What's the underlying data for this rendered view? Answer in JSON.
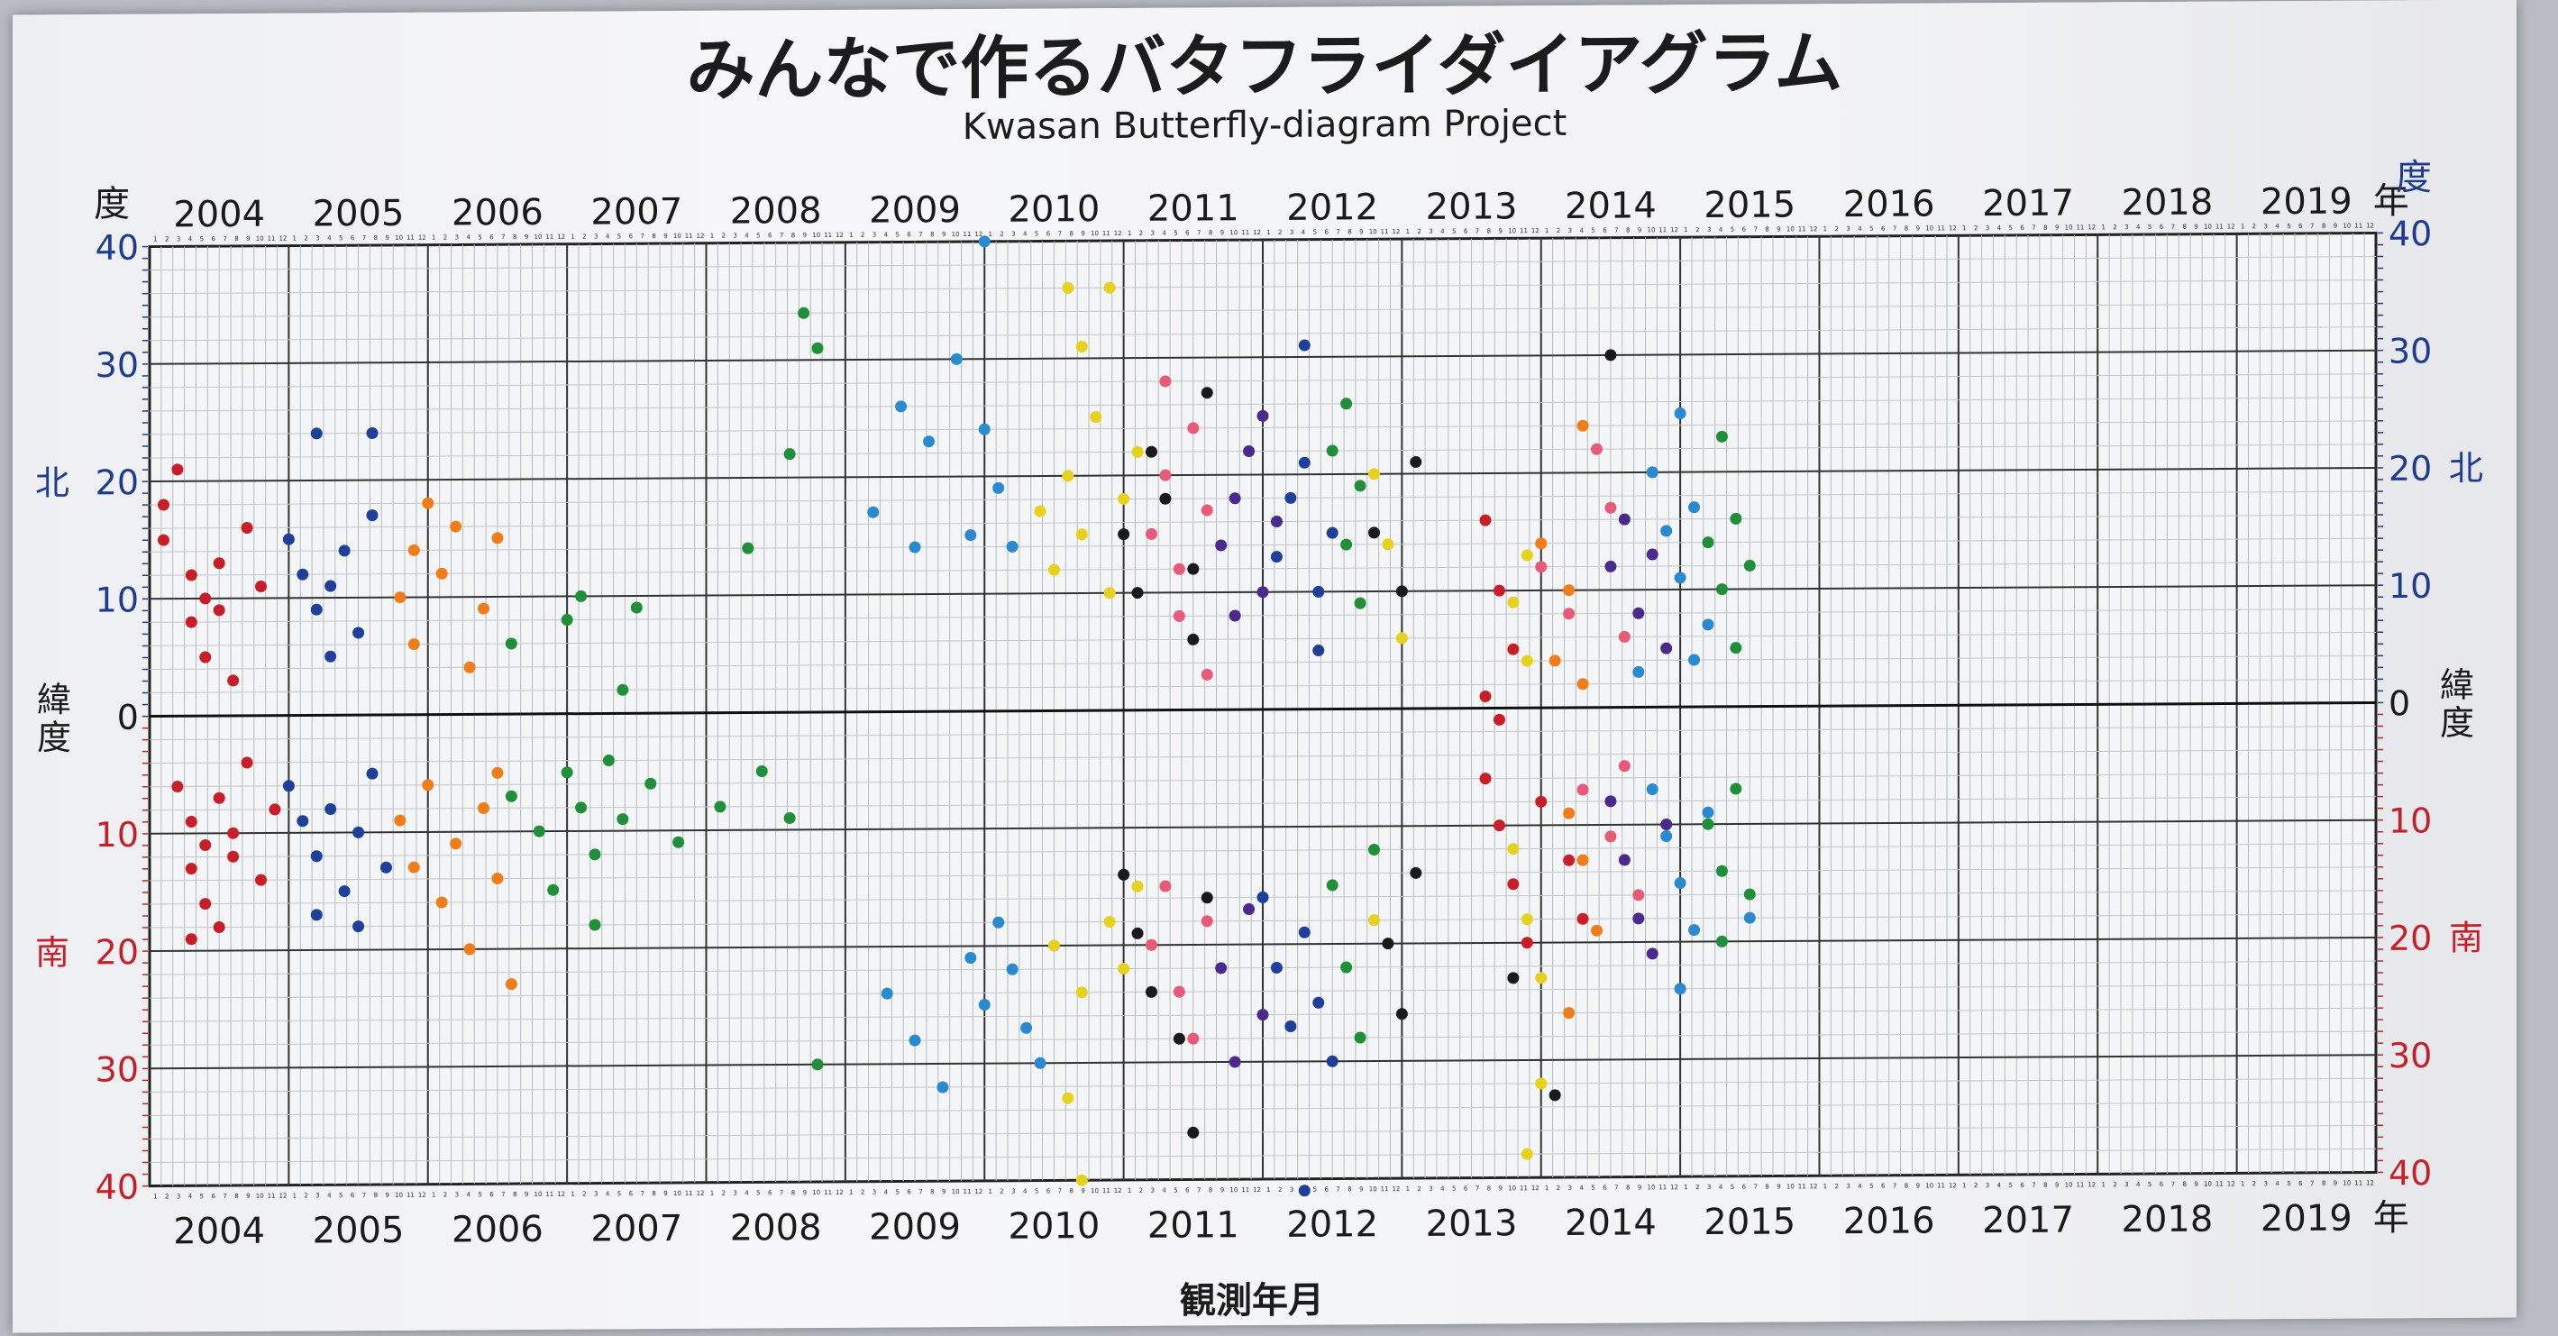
{
  "chart_data": {
    "type": "scatter",
    "title": "みんなで作るバタフライダイアグラム",
    "subtitle": "Kwasan Butterfly-diagram Project",
    "xlabel": "観測年月",
    "year_ticks": [
      "2004",
      "2005",
      "2006",
      "2007",
      "2008",
      "2009",
      "2010",
      "2011",
      "2012",
      "2013",
      "2014",
      "2015",
      "2016",
      "2017",
      "2018",
      "2019"
    ],
    "year_suffix": "年",
    "xlim": [
      2004.0,
      2020.0
    ],
    "ylim": [
      -40,
      40
    ],
    "y_ticks_north": [
      40,
      30,
      20,
      10
    ],
    "y_ticks_south": [
      10,
      20,
      30,
      40
    ],
    "y_zero": "0",
    "y_unit_label": "度",
    "north_label": "北",
    "south_label": "南",
    "latitude_label": "緯度",
    "month_ticks": [
      "1",
      "2",
      "3",
      "4",
      "5",
      "6",
      "7",
      "8",
      "9",
      "10",
      "11",
      "12"
    ],
    "grid": true,
    "colors": {
      "north_axis": "#1f3b8f",
      "south_axis": "#c4202a",
      "red": "#c81e2a",
      "blue": "#1e3f9a",
      "orange": "#f07d1a",
      "green": "#1f8f3a",
      "yellow": "#e6d21e",
      "pink": "#e85a78",
      "purple": "#4a2a8c",
      "black": "#1a1a1a",
      "lightblue": "#2a8ad0"
    },
    "series": [
      {
        "color": "red",
        "points": [
          [
            2004.1,
            18
          ],
          [
            2004.1,
            15
          ],
          [
            2004.3,
            12
          ],
          [
            2004.3,
            8
          ],
          [
            2004.4,
            10
          ],
          [
            2004.4,
            5
          ],
          [
            2004.5,
            13
          ],
          [
            2004.5,
            9
          ],
          [
            2004.7,
            16
          ],
          [
            2004.8,
            11
          ],
          [
            2004.2,
            21
          ],
          [
            2004.6,
            3
          ],
          [
            2004.2,
            -6
          ],
          [
            2004.3,
            -9
          ],
          [
            2004.3,
            -13
          ],
          [
            2004.4,
            -16
          ],
          [
            2004.4,
            -11
          ],
          [
            2004.5,
            -7
          ],
          [
            2004.5,
            -18
          ],
          [
            2004.6,
            -10
          ],
          [
            2004.7,
            -4
          ],
          [
            2004.8,
            -14
          ],
          [
            2004.9,
            -8
          ],
          [
            2004.3,
            -19
          ],
          [
            2004.6,
            -12
          ]
        ]
      },
      {
        "color": "blue",
        "points": [
          [
            2005.0,
            15
          ],
          [
            2005.1,
            12
          ],
          [
            2005.2,
            9
          ],
          [
            2005.3,
            11
          ],
          [
            2005.4,
            14
          ],
          [
            2005.5,
            7
          ],
          [
            2005.6,
            17
          ],
          [
            2005.3,
            5
          ],
          [
            2005.2,
            24
          ],
          [
            2005.6,
            24
          ],
          [
            2005.0,
            -6
          ],
          [
            2005.1,
            -9
          ],
          [
            2005.2,
            -12
          ],
          [
            2005.3,
            -8
          ],
          [
            2005.4,
            -15
          ],
          [
            2005.5,
            -10
          ],
          [
            2005.6,
            -5
          ],
          [
            2005.7,
            -13
          ],
          [
            2005.2,
            -17
          ],
          [
            2005.5,
            -18
          ]
        ]
      },
      {
        "color": "orange",
        "points": [
          [
            2005.8,
            10
          ],
          [
            2005.9,
            14
          ],
          [
            2005.9,
            6
          ],
          [
            2006.0,
            18
          ],
          [
            2006.1,
            12
          ],
          [
            2006.2,
            16
          ],
          [
            2006.3,
            4
          ],
          [
            2006.4,
            9
          ],
          [
            2006.5,
            15
          ],
          [
            2005.8,
            -9
          ],
          [
            2005.9,
            -13
          ],
          [
            2006.0,
            -6
          ],
          [
            2006.1,
            -16
          ],
          [
            2006.2,
            -11
          ],
          [
            2006.3,
            -20
          ],
          [
            2006.4,
            -8
          ],
          [
            2006.5,
            -14
          ],
          [
            2006.6,
            -23
          ],
          [
            2006.5,
            -5
          ]
        ]
      },
      {
        "color": "green",
        "points": [
          [
            2006.6,
            6
          ],
          [
            2007.0,
            8
          ],
          [
            2007.1,
            10
          ],
          [
            2007.5,
            9
          ],
          [
            2008.3,
            14
          ],
          [
            2008.7,
            34
          ],
          [
            2008.8,
            31
          ],
          [
            2008.6,
            22
          ],
          [
            2007.4,
            2
          ],
          [
            2006.6,
            -7
          ],
          [
            2006.8,
            -10
          ],
          [
            2007.0,
            -5
          ],
          [
            2007.1,
            -8
          ],
          [
            2007.2,
            -12
          ],
          [
            2007.3,
            -4
          ],
          [
            2007.4,
            -9
          ],
          [
            2007.6,
            -6
          ],
          [
            2007.8,
            -11
          ],
          [
            2008.1,
            -8
          ],
          [
            2008.4,
            -5
          ],
          [
            2008.6,
            -9
          ],
          [
            2006.9,
            -15
          ],
          [
            2007.2,
            -18
          ],
          [
            2008.8,
            -30
          ]
        ]
      },
      {
        "color": "lightblue",
        "points": [
          [
            2009.2,
            17
          ],
          [
            2009.4,
            26
          ],
          [
            2009.6,
            23
          ],
          [
            2009.8,
            30
          ],
          [
            2010.0,
            24
          ],
          [
            2010.1,
            19
          ],
          [
            2010.2,
            14
          ],
          [
            2009.9,
            15
          ],
          [
            2010.0,
            40
          ],
          [
            2009.5,
            14
          ],
          [
            2009.3,
            -24
          ],
          [
            2009.5,
            -28
          ],
          [
            2009.7,
            -32
          ],
          [
            2009.9,
            -21
          ],
          [
            2010.0,
            -25
          ],
          [
            2010.1,
            -18
          ],
          [
            2010.2,
            -22
          ],
          [
            2010.3,
            -27
          ],
          [
            2010.4,
            -30
          ],
          [
            2010.5,
            -20
          ]
        ]
      },
      {
        "color": "yellow",
        "points": [
          [
            2010.4,
            17
          ],
          [
            2010.5,
            12
          ],
          [
            2010.6,
            20
          ],
          [
            2010.7,
            15
          ],
          [
            2010.8,
            25
          ],
          [
            2010.9,
            10
          ],
          [
            2011.0,
            18
          ],
          [
            2011.1,
            22
          ],
          [
            2010.6,
            36
          ],
          [
            2010.9,
            36
          ],
          [
            2010.7,
            31
          ],
          [
            2010.5,
            -20
          ],
          [
            2010.7,
            -24
          ],
          [
            2010.9,
            -18
          ],
          [
            2011.0,
            -22
          ],
          [
            2011.1,
            -15
          ],
          [
            2010.6,
            -33
          ],
          [
            2010.7,
            -40
          ]
        ]
      },
      {
        "color": "pink",
        "points": [
          [
            2011.2,
            15
          ],
          [
            2011.3,
            20
          ],
          [
            2011.4,
            12
          ],
          [
            2011.5,
            24
          ],
          [
            2011.6,
            17
          ],
          [
            2011.3,
            28
          ],
          [
            2011.4,
            8
          ],
          [
            2011.6,
            3
          ],
          [
            2011.2,
            -20
          ],
          [
            2011.3,
            -15
          ],
          [
            2011.4,
            -24
          ],
          [
            2011.5,
            -28
          ],
          [
            2011.6,
            -18
          ]
        ]
      },
      {
        "color": "purple",
        "points": [
          [
            2011.7,
            14
          ],
          [
            2011.8,
            18
          ],
          [
            2011.9,
            22
          ],
          [
            2012.0,
            10
          ],
          [
            2012.1,
            16
          ],
          [
            2011.8,
            8
          ],
          [
            2012.0,
            25
          ],
          [
            2011.7,
            -22
          ],
          [
            2011.8,
            -30
          ],
          [
            2011.9,
            -17
          ],
          [
            2012.0,
            -26
          ]
        ]
      },
      {
        "color": "black",
        "points": [
          [
            2011.0,
            15
          ],
          [
            2011.1,
            10
          ],
          [
            2011.2,
            22
          ],
          [
            2011.3,
            18
          ],
          [
            2011.5,
            12
          ],
          [
            2011.6,
            27
          ],
          [
            2011.5,
            6
          ],
          [
            2012.8,
            15
          ],
          [
            2013.0,
            10
          ],
          [
            2013.1,
            21
          ],
          [
            2014.5,
            30
          ],
          [
            2011.0,
            -14
          ],
          [
            2011.1,
            -19
          ],
          [
            2011.2,
            -24
          ],
          [
            2011.4,
            -28
          ],
          [
            2011.6,
            -16
          ],
          [
            2011.5,
            -36
          ],
          [
            2012.9,
            -20
          ],
          [
            2013.0,
            -26
          ],
          [
            2013.1,
            -14
          ],
          [
            2013.8,
            -23
          ],
          [
            2014.1,
            -33
          ]
        ]
      },
      {
        "color": "blue",
        "points": [
          [
            2012.1,
            13
          ],
          [
            2012.2,
            18
          ],
          [
            2012.3,
            21
          ],
          [
            2012.4,
            10
          ],
          [
            2012.5,
            15
          ],
          [
            2012.3,
            31
          ],
          [
            2012.4,
            5
          ],
          [
            2012.0,
            -16
          ],
          [
            2012.1,
            -22
          ],
          [
            2012.2,
            -27
          ],
          [
            2012.3,
            -19
          ],
          [
            2012.4,
            -25
          ],
          [
            2012.5,
            -30
          ],
          [
            2012.3,
            -41
          ]
        ]
      },
      {
        "color": "green",
        "points": [
          [
            2012.5,
            22
          ],
          [
            2012.6,
            14
          ],
          [
            2012.7,
            19
          ],
          [
            2012.6,
            26
          ],
          [
            2012.7,
            9
          ],
          [
            2012.5,
            -15
          ],
          [
            2012.6,
            -22
          ],
          [
            2012.7,
            -28
          ],
          [
            2012.8,
            -12
          ]
        ]
      },
      {
        "color": "yellow",
        "points": [
          [
            2012.8,
            20
          ],
          [
            2012.9,
            14
          ],
          [
            2013.0,
            6
          ],
          [
            2013.8,
            9
          ],
          [
            2013.9,
            13
          ],
          [
            2013.9,
            4
          ],
          [
            2012.8,
            -18
          ],
          [
            2013.8,
            -12
          ],
          [
            2013.9,
            -18
          ],
          [
            2014.0,
            -23
          ],
          [
            2014.0,
            -32
          ],
          [
            2013.9,
            -38
          ]
        ]
      },
      {
        "color": "red",
        "points": [
          [
            2013.6,
            16
          ],
          [
            2013.7,
            10
          ],
          [
            2013.8,
            5
          ],
          [
            2013.6,
            1
          ],
          [
            2013.7,
            -1
          ],
          [
            2013.6,
            -6
          ],
          [
            2013.7,
            -10
          ],
          [
            2013.8,
            -15
          ],
          [
            2013.9,
            -20
          ],
          [
            2014.0,
            -8
          ],
          [
            2014.2,
            -13
          ],
          [
            2014.3,
            -18
          ]
        ]
      },
      {
        "color": "pink",
        "points": [
          [
            2014.0,
            12
          ],
          [
            2014.2,
            8
          ],
          [
            2014.4,
            22
          ],
          [
            2014.5,
            17
          ],
          [
            2014.6,
            6
          ],
          [
            2014.3,
            -7
          ],
          [
            2014.5,
            -11
          ],
          [
            2014.6,
            -5
          ],
          [
            2014.7,
            -16
          ]
        ]
      },
      {
        "color": "orange",
        "points": [
          [
            2014.0,
            14
          ],
          [
            2014.1,
            4
          ],
          [
            2014.2,
            10
          ],
          [
            2014.3,
            24
          ],
          [
            2014.3,
            2
          ],
          [
            2014.2,
            -9
          ],
          [
            2014.3,
            -13
          ],
          [
            2014.4,
            -19
          ],
          [
            2014.2,
            -26
          ]
        ]
      },
      {
        "color": "purple",
        "points": [
          [
            2014.5,
            12
          ],
          [
            2014.6,
            16
          ],
          [
            2014.7,
            8
          ],
          [
            2014.8,
            13
          ],
          [
            2014.9,
            5
          ],
          [
            2014.5,
            -8
          ],
          [
            2014.6,
            -13
          ],
          [
            2014.7,
            -18
          ],
          [
            2014.8,
            -21
          ],
          [
            2014.9,
            -10
          ]
        ]
      },
      {
        "color": "lightblue",
        "points": [
          [
            2014.8,
            20
          ],
          [
            2014.9,
            15
          ],
          [
            2015.0,
            11
          ],
          [
            2015.1,
            17
          ],
          [
            2015.2,
            7
          ],
          [
            2015.0,
            25
          ],
          [
            2014.7,
            3
          ],
          [
            2015.1,
            4
          ],
          [
            2014.8,
            -7
          ],
          [
            2014.9,
            -11
          ],
          [
            2015.0,
            -15
          ],
          [
            2015.1,
            -19
          ],
          [
            2015.2,
            -9
          ],
          [
            2015.0,
            -24
          ],
          [
            2015.5,
            -18
          ]
        ]
      },
      {
        "color": "green",
        "points": [
          [
            2015.2,
            14
          ],
          [
            2015.3,
            10
          ],
          [
            2015.4,
            16
          ],
          [
            2015.5,
            12
          ],
          [
            2015.3,
            23
          ],
          [
            2015.4,
            5
          ],
          [
            2015.2,
            -10
          ],
          [
            2015.3,
            -14
          ],
          [
            2015.4,
            -7
          ],
          [
            2015.5,
            -16
          ],
          [
            2015.3,
            -20
          ]
        ]
      }
    ]
  }
}
